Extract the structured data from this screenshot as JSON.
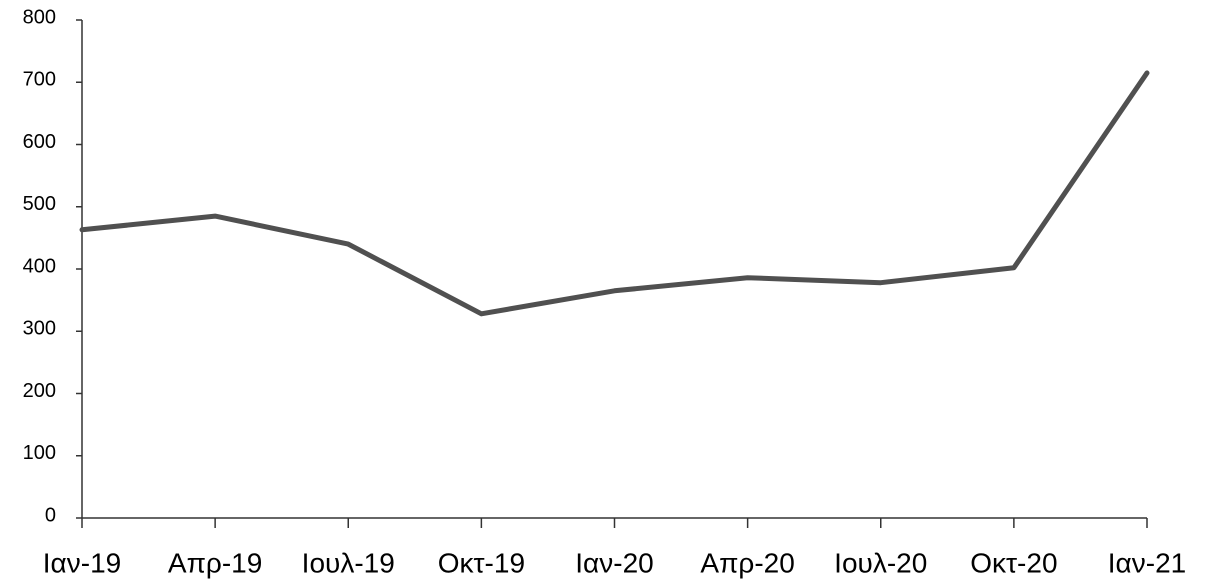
{
  "chart_data": {
    "type": "line",
    "categories": [
      "Ιαν-19",
      "Απρ-19",
      "Ιουλ-19",
      "Οκτ-19",
      "Ιαν-20",
      "Απρ-20",
      "Ιουλ-20",
      "Οκτ-20",
      "Ιαν-21"
    ],
    "series": [
      {
        "color": "#505050",
        "values": [
          463,
          485,
          440,
          328,
          365,
          386,
          378,
          402,
          715
        ]
      }
    ],
    "ylim": [
      0,
      800
    ],
    "yticks": [
      0,
      100,
      200,
      300,
      400,
      500,
      600,
      700,
      800
    ],
    "grid": false
  }
}
